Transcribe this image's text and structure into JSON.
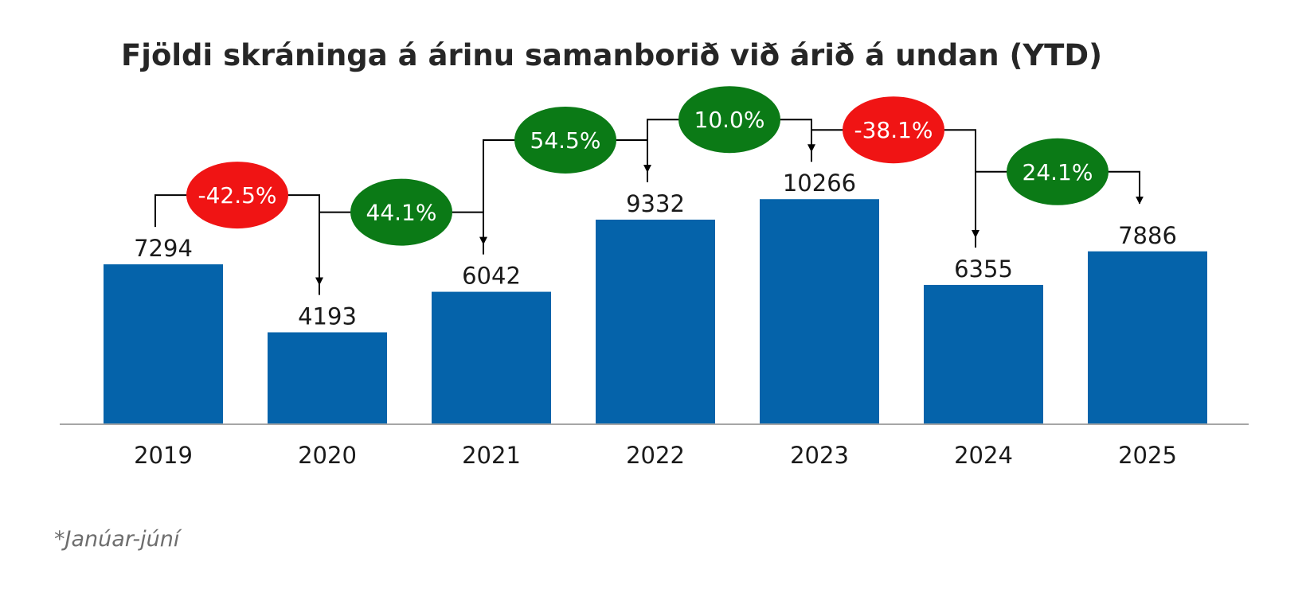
{
  "chart_data": {
    "type": "bar",
    "title": "Fjöldi skráninga á árinu samanborið við árið á undan (YTD)",
    "categories": [
      "2019",
      "2020",
      "2021",
      "2022",
      "2023",
      "2024",
      "2025"
    ],
    "values": [
      7294,
      4193,
      6042,
      9332,
      10266,
      6355,
      7886
    ],
    "value_labels": [
      "7294",
      "4193",
      "6042",
      "9332",
      "10266",
      "6355",
      "7886"
    ],
    "changes": [
      {
        "from": "2019",
        "to": "2020",
        "label": "-42.5%",
        "value": -42.5
      },
      {
        "from": "2020",
        "to": "2021",
        "label": "44.1%",
        "value": 44.1
      },
      {
        "from": "2021",
        "to": "2022",
        "label": "54.5%",
        "value": 54.5
      },
      {
        "from": "2022",
        "to": "2023",
        "label": "10.0%",
        "value": 10.0
      },
      {
        "from": "2023",
        "to": "2024",
        "label": "-38.1%",
        "value": -38.1
      },
      {
        "from": "2024",
        "to": "2025",
        "label": "24.1%",
        "value": 24.1
      }
    ],
    "xlabel": "",
    "ylabel": "",
    "ylim": [
      0,
      11000
    ],
    "grid": false,
    "legend": "none",
    "footnote": "*Janúar-júní",
    "colors": {
      "bar": "#0563AA",
      "increase": "#0B7A16",
      "decrease": "#F01414",
      "axis": "#A6A6A6"
    }
  }
}
